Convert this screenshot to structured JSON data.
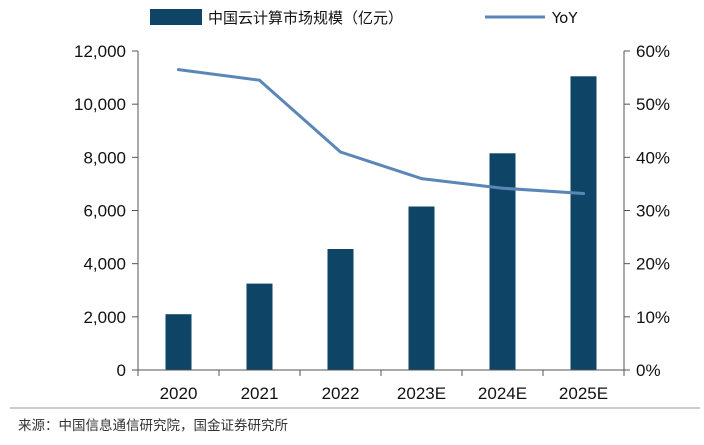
{
  "chart_data": {
    "type": "bar",
    "categories": [
      "2020",
      "2021",
      "2022",
      "2023E",
      "2024E",
      "2025E"
    ],
    "series": [
      {
        "name": "中国云计算市场规模（亿元）",
        "type": "bar",
        "axis": "left",
        "color": "#0e4466",
        "values": [
          2100,
          3250,
          4550,
          6150,
          8150,
          11050
        ]
      },
      {
        "name": "YoY",
        "type": "line",
        "axis": "right",
        "color": "#5b86b8",
        "values": [
          56.5,
          54.5,
          41,
          36,
          34.2,
          33.2
        ]
      }
    ],
    "y_left": {
      "ylim": [
        0,
        12000
      ],
      "ticks": [
        0,
        2000,
        4000,
        6000,
        8000,
        10000,
        12000
      ],
      "tick_labels": [
        "0",
        "2,000",
        "4,000",
        "6,000",
        "8,000",
        "10,000",
        "12,000"
      ]
    },
    "y_right": {
      "ylim": [
        0,
        60
      ],
      "ticks": [
        0,
        10,
        20,
        30,
        40,
        50,
        60
      ],
      "tick_labels": [
        "0%",
        "10%",
        "20%",
        "30%",
        "40%",
        "50%",
        "60%"
      ]
    },
    "legend_position": "top",
    "grid": false,
    "source": "来源：中国信息通信研究院，国金证券研究所"
  }
}
